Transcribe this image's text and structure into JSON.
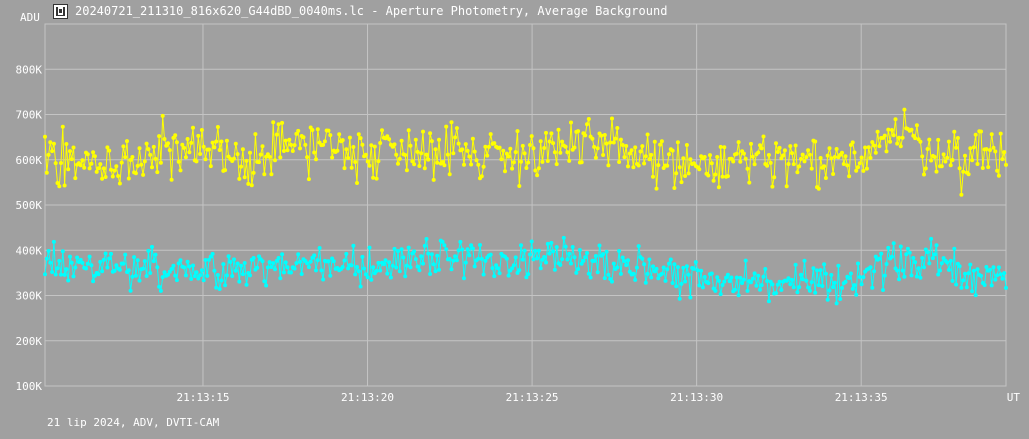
{
  "window": {
    "title": "20240721_211310_816x620_G44dBD_0040ms.lc - Aperture Photometry, Average Background",
    "icon": "lightcurve-app-icon"
  },
  "footer": {
    "text": "21 lip 2024, ADV, DVTI-CAM"
  },
  "chart_data": {
    "type": "line",
    "title": "20240721_211310_816x620_G44dBD_0040ms.lc - Aperture Photometry, Average Background",
    "xlabel": "UT",
    "ylabel": "ADU",
    "xlim": [
      "21:13:10.2",
      "21:13:39.4"
    ],
    "ylim": [
      100000,
      900000
    ],
    "grid": true,
    "x_ticks": [
      "21:13:15",
      "21:13:20",
      "21:13:25",
      "21:13:30",
      "21:13:35"
    ],
    "y_ticks": [
      "100K",
      "200K",
      "300K",
      "400K",
      "500K",
      "600K",
      "700K",
      "800K"
    ],
    "y_tick_values": [
      100000,
      200000,
      300000,
      400000,
      500000,
      600000,
      700000,
      800000
    ],
    "x_tick_values": [
      15,
      20,
      25,
      30,
      35
    ],
    "series": [
      {
        "color": "#ffff00",
        "x": [
          10.2,
          12,
          14,
          16,
          18,
          20,
          22,
          24,
          26,
          28,
          30,
          32,
          34,
          35,
          36,
          37,
          38,
          39.4
        ],
        "values": [
          620000,
          580000,
          620000,
          600000,
          640000,
          620000,
          630000,
          610000,
          630000,
          620000,
          580000,
          600000,
          580000,
          620000,
          660000,
          630000,
          600000,
          630000
        ],
        "spread": 90000
      },
      {
        "color": "#00ffff",
        "x": [
          10.2,
          12,
          14,
          16,
          18,
          20,
          22,
          24,
          26,
          28,
          30,
          32,
          34,
          35,
          36,
          37,
          38,
          39.4
        ],
        "values": [
          370000,
          370000,
          360000,
          350000,
          370000,
          360000,
          390000,
          370000,
          390000,
          370000,
          340000,
          330000,
          320000,
          350000,
          370000,
          380000,
          350000,
          340000
        ],
        "spread": 60000
      }
    ],
    "colors": {
      "background": "#a0a0a0",
      "grid": "#c4c4c4",
      "text": "#ffffff"
    }
  }
}
